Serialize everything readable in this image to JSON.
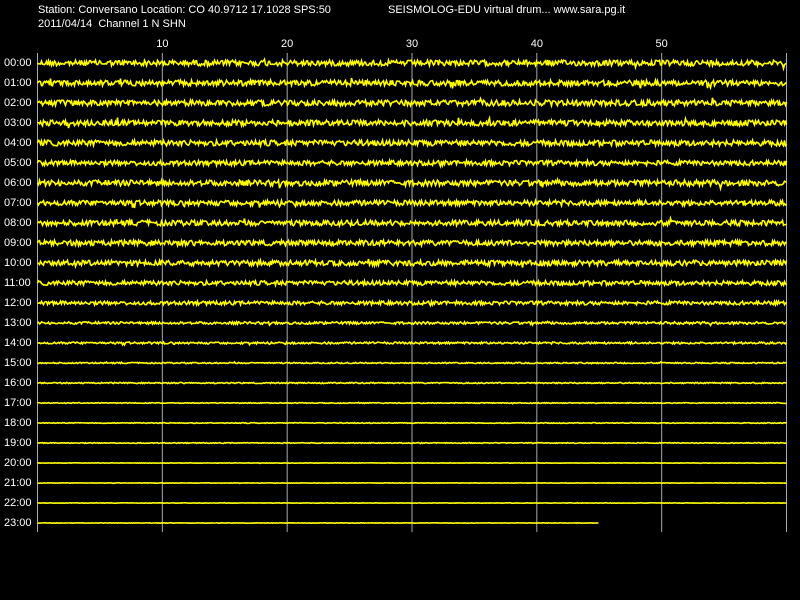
{
  "chart_data": {
    "type": "drum",
    "title": "Station: Conversano Location: CO 40.9712 17.1028 SPS:50",
    "subtitle": "SEISMOLOG-EDU virtual drum... www.sara.pg.it",
    "caption": "2011/04/14  Channel 1 N SHN",
    "color": "#ffff00",
    "xlim": [
      0,
      60
    ],
    "xticks": [
      10,
      20,
      30,
      40,
      50
    ],
    "grid": true,
    "rows": [
      {
        "label": "00:00",
        "end": 60,
        "amplitude": 0.14
      },
      {
        "label": "01:00",
        "end": 60,
        "amplitude": 0.14
      },
      {
        "label": "02:00",
        "end": 60,
        "amplitude": 0.14
      },
      {
        "label": "03:00",
        "end": 60,
        "amplitude": 0.14
      },
      {
        "label": "04:00",
        "end": 60,
        "amplitude": 0.14
      },
      {
        "label": "05:00",
        "end": 60,
        "amplitude": 0.12
      },
      {
        "label": "06:00",
        "end": 60,
        "amplitude": 0.14
      },
      {
        "label": "07:00",
        "end": 60,
        "amplitude": 0.13
      },
      {
        "label": "08:00",
        "end": 60,
        "amplitude": 0.13
      },
      {
        "label": "09:00",
        "end": 60,
        "amplitude": 0.13
      },
      {
        "label": "10:00",
        "end": 60,
        "amplitude": 0.13
      },
      {
        "label": "11:00",
        "end": 60,
        "amplitude": 0.11
      },
      {
        "label": "12:00",
        "end": 60,
        "amplitude": 0.09
      },
      {
        "label": "13:00",
        "end": 60,
        "amplitude": 0.06
      },
      {
        "label": "14:00",
        "end": 60,
        "amplitude": 0.05
      },
      {
        "label": "15:00",
        "end": 60,
        "amplitude": 0.03
      },
      {
        "label": "16:00",
        "end": 60,
        "amplitude": 0.03
      },
      {
        "label": "17:00",
        "end": 60,
        "amplitude": 0.02
      },
      {
        "label": "18:00",
        "end": 60,
        "amplitude": 0.02
      },
      {
        "label": "19:00",
        "end": 60,
        "amplitude": 0.02
      },
      {
        "label": "20:00",
        "end": 60,
        "amplitude": 0.01
      },
      {
        "label": "21:00",
        "end": 60,
        "amplitude": 0.01
      },
      {
        "label": "22:00",
        "end": 60,
        "amplitude": 0.01
      },
      {
        "label": "23:00",
        "end": 45,
        "amplitude": 0.01
      }
    ]
  }
}
